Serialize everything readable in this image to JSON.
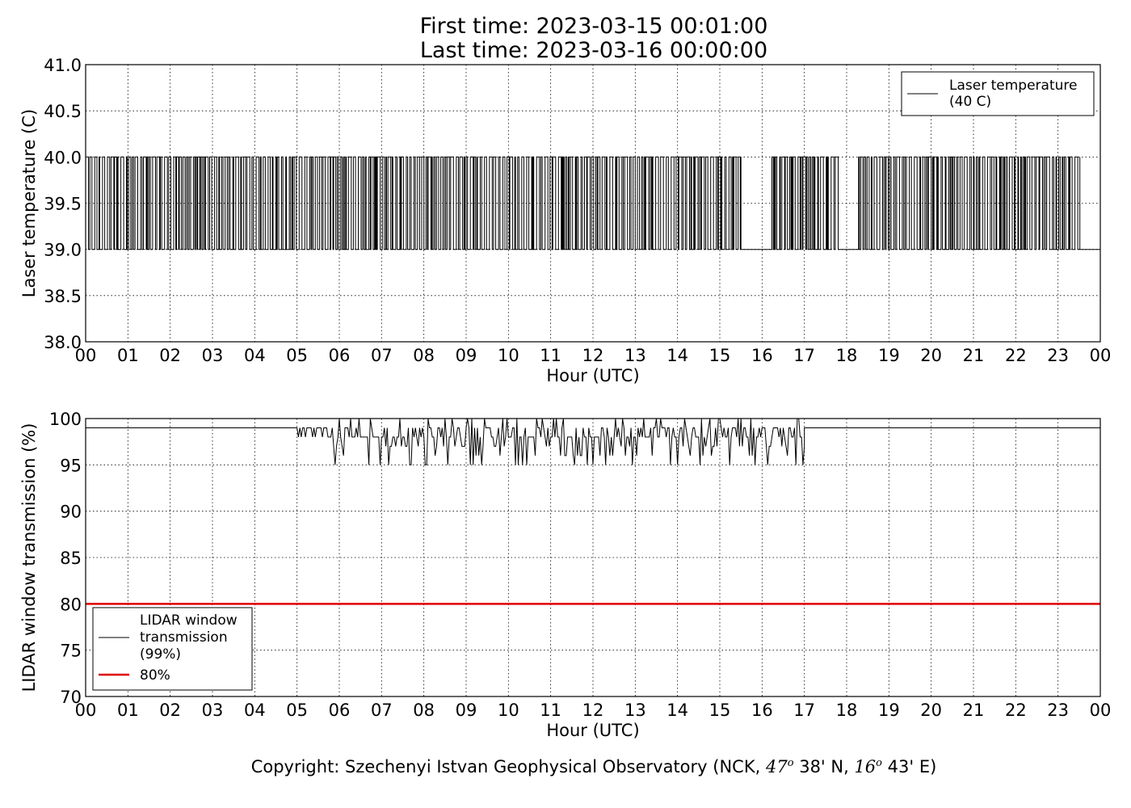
{
  "header": {
    "first_time": "First time: 2023-03-15 00:01:00",
    "last_time": "Last time: 2023-03-16 00:00:00"
  },
  "chart_data": [
    {
      "type": "line",
      "ylabel": "Laser temperature (C)",
      "xlabel": "Hour (UTC)",
      "ylim": [
        38.0,
        41.0
      ],
      "xlim": [
        0,
        24
      ],
      "y_ticks": [
        "38.0",
        "38.5",
        "39.0",
        "39.5",
        "40.0",
        "40.5",
        "41.0"
      ],
      "x_ticks": [
        "00",
        "01",
        "02",
        "03",
        "04",
        "05",
        "06",
        "07",
        "08",
        "09",
        "10",
        "11",
        "12",
        "13",
        "14",
        "15",
        "16",
        "17",
        "18",
        "19",
        "20",
        "21",
        "22",
        "23",
        "00"
      ],
      "grid": true,
      "legend_position": "top-right",
      "series": [
        {
          "name": "Laser temperature\n(40 C)",
          "legend_lines": [
            "Laser temperature",
            "(40 C)"
          ],
          "color": "#000000",
          "pattern": "minute samples alternating between 39.0 and 40.0 C",
          "levels": [
            39.0,
            40.0
          ],
          "flat_segments": [
            {
              "from_hour": 15.5,
              "to_hour": 16.2,
              "value": 39.0
            },
            {
              "from_hour": 17.8,
              "to_hour": 18.25,
              "value": 39.0
            },
            {
              "from_hour": 23.5,
              "to_hour": 23.97,
              "value": 39.0
            }
          ]
        }
      ]
    },
    {
      "type": "line",
      "ylabel": "LIDAR window transmission (%)",
      "xlabel": "Hour (UTC)",
      "ylim": [
        70,
        100
      ],
      "xlim": [
        0,
        24
      ],
      "y_ticks": [
        "70",
        "75",
        "80",
        "85",
        "90",
        "95",
        "100"
      ],
      "x_ticks": [
        "00",
        "01",
        "02",
        "03",
        "04",
        "05",
        "06",
        "07",
        "08",
        "09",
        "10",
        "11",
        "12",
        "13",
        "14",
        "15",
        "16",
        "17",
        "18",
        "19",
        "20",
        "21",
        "22",
        "23",
        "00"
      ],
      "grid": true,
      "legend_position": "bottom-left",
      "series": [
        {
          "name": "LIDAR window\ntransmission\n(99%)",
          "legend_lines": [
            "LIDAR window",
            "transmission",
            "(99%)"
          ],
          "color": "#000000",
          "baseline": 99,
          "noisy_interval_hours": [
            5.0,
            17.0
          ],
          "noise_min": 95,
          "noise_max": 100
        },
        {
          "name": "80%",
          "legend_lines": [
            "80%"
          ],
          "color": "#e00000",
          "value": 80
        }
      ]
    }
  ],
  "footer": {
    "copyright_prefix": "Copyright: Szechenyi Istvan Geophysical Observatory (NCK, ",
    "lat_deg": "47",
    "lat_min": " 38' N, ",
    "lon_deg": "16",
    "lon_min": " 43' E)",
    "deg_symbol": "o"
  }
}
